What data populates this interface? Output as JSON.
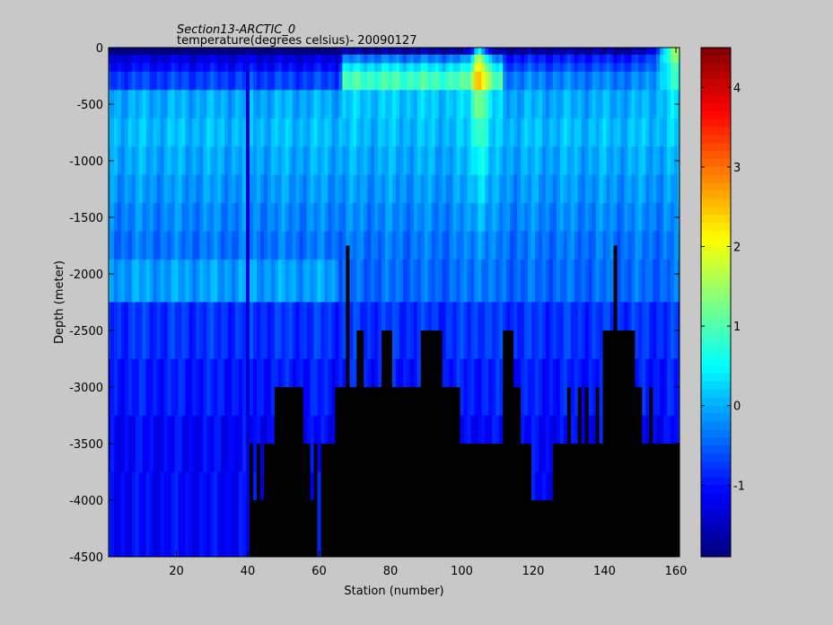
{
  "chart_data": {
    "type": "heatmap",
    "title": "Section13-ARCTIC_0",
    "subtitle": "temperature(degrees  celsius)- 20090127",
    "xlabel": "Station (number)",
    "ylabel": "Depth (meter)",
    "xlim": [
      1,
      161
    ],
    "ylim": [
      -4500,
      0
    ],
    "xticks": [
      20,
      40,
      60,
      80,
      100,
      120,
      140,
      160
    ],
    "yticks": [
      0,
      -500,
      -1000,
      -1500,
      -2000,
      -2500,
      -3000,
      -3500,
      -4000,
      -4500
    ],
    "colorbar": {
      "range": [
        -1.9,
        4.5
      ],
      "ticks": [
        -1,
        0,
        1,
        2,
        3,
        4
      ],
      "colormap": "jet"
    },
    "depth_levels": [
      -25,
      -100,
      -175,
      -250,
      -500,
      -750,
      -1000,
      -1250,
      -1500,
      -1750,
      -2000,
      -2500,
      -3000,
      -3500,
      -4000
    ],
    "bottom_depth_by_station": [
      4500,
      4500,
      4500,
      4500,
      4500,
      4500,
      4500,
      4500,
      4500,
      4500,
      4500,
      4500,
      4500,
      4500,
      4500,
      4500,
      4500,
      4500,
      4500,
      4500,
      4500,
      4500,
      4500,
      4500,
      4500,
      4500,
      4500,
      4500,
      4500,
      4500,
      4500,
      4500,
      4500,
      4500,
      4500,
      4500,
      4500,
      4500,
      4500,
      4500,
      3500,
      4000,
      3500,
      4000,
      3500,
      3500,
      3500,
      3000,
      3000,
      3000,
      3000,
      3000,
      3000,
      3000,
      3000,
      3500,
      3500,
      4000,
      3500,
      4500,
      3500,
      3500,
      3500,
      3500,
      3000,
      3000,
      3000,
      1750,
      3000,
      3000,
      2500,
      2500,
      3000,
      3000,
      3000,
      3000,
      3000,
      2500,
      2500,
      2500,
      3000,
      3000,
      3000,
      3000,
      3000,
      3000,
      3000,
      3000,
      2500,
      2500,
      2500,
      2500,
      2500,
      2500,
      3000,
      3000,
      3000,
      3000,
      3000,
      3500,
      3500,
      3500,
      3500,
      3500,
      3500,
      3500,
      3500,
      3500,
      3500,
      3500,
      3500,
      2500,
      2500,
      2500,
      3000,
      3000,
      3500,
      3500,
      3500,
      4000,
      4000,
      4000,
      4000,
      4000,
      4000,
      3500,
      3500,
      3500,
      3500,
      3000,
      3500,
      3500,
      3000,
      3500,
      3000,
      3500,
      3500,
      3000,
      3500,
      2500,
      2500,
      2500,
      1750,
      2500,
      2500,
      2500,
      2500,
      2500,
      3000,
      3000,
      3500,
      3500,
      3000,
      3500,
      3500,
      3500,
      3500,
      3500,
      3500,
      3500,
      3500
    ]
  },
  "colors": {
    "figure_background": "#c8c8c8",
    "axes_background": "#ffffff",
    "land": "#000000"
  }
}
